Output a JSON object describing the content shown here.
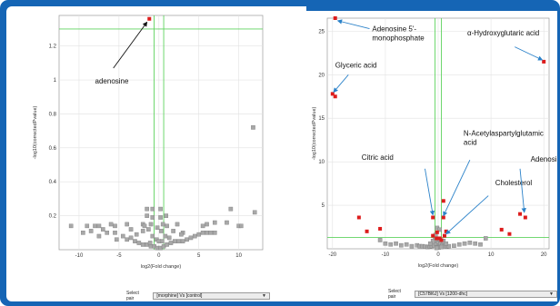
{
  "chart_data": [
    {
      "type": "scatter",
      "xlabel": "log2(Fold change)",
      "ylabel": "-log10(correctedPvalue)",
      "xlim": [
        -12.5,
        13
      ],
      "ylim": [
        0,
        1.38
      ],
      "xticks": [
        -10,
        -5,
        0,
        5,
        10
      ],
      "xtick_labels": [
        "-10",
        "-5",
        "0",
        "5",
        "10"
      ],
      "yticks": [
        0.2,
        0.4,
        0.6,
        0.8,
        1.0,
        1.2
      ],
      "ytick_labels": [
        "0.2",
        "0.4",
        "0.6",
        "0.8",
        "1",
        "1.2"
      ],
      "grid": true,
      "thresholds": {
        "x": [
          -0.6,
          0.6
        ],
        "y": 1.3
      },
      "series": [
        {
          "color": "#dd1c1c",
          "points": [
            [
              -1.2,
              1.36
            ]
          ]
        },
        {
          "color": "#a8a8a8",
          "points": [
            [
              -11,
              0.14
            ],
            [
              -9,
              0.14
            ],
            [
              -8,
              0.14
            ],
            [
              -7.5,
              0.14
            ],
            [
              -6,
              0.15
            ],
            [
              -5.5,
              0.14
            ],
            [
              -7.5,
              0.08
            ],
            [
              -6.5,
              0.1
            ],
            [
              -5.5,
              0.1
            ],
            [
              -5.3,
              0.06
            ],
            [
              -4.5,
              0.08
            ],
            [
              -4,
              0.06
            ],
            [
              -3.5,
              0.07
            ],
            [
              -3,
              0.05
            ],
            [
              -2.5,
              0.04
            ],
            [
              -2,
              0.03
            ],
            [
              -1.5,
              0.03
            ],
            [
              -1,
              0.02
            ],
            [
              -0.6,
              0.02
            ],
            [
              -0.2,
              0.01
            ],
            [
              0.2,
              0.01
            ],
            [
              0.6,
              0.02
            ],
            [
              1.0,
              0.03
            ],
            [
              1.5,
              0.04
            ],
            [
              2.0,
              0.05
            ],
            [
              2.5,
              0.05
            ],
            [
              3.0,
              0.05
            ],
            [
              3.5,
              0.06
            ],
            [
              4.0,
              0.07
            ],
            [
              4.5,
              0.08
            ],
            [
              5.0,
              0.09
            ],
            [
              5.5,
              0.1
            ],
            [
              6.0,
              0.1
            ],
            [
              6.5,
              0.1
            ],
            [
              7.0,
              0.1
            ],
            [
              -2,
              0.15
            ],
            [
              -1.8,
              0.14
            ],
            [
              -1.0,
              0.15
            ],
            [
              0.5,
              0.15
            ],
            [
              1.0,
              0.14
            ],
            [
              -1.5,
              0.2
            ],
            [
              -0.8,
              0.19
            ],
            [
              0.2,
              0.19
            ],
            [
              -1.3,
              0.12
            ],
            [
              0.3,
              0.11
            ],
            [
              -0.8,
              0.08
            ],
            [
              0.8,
              0.08
            ],
            [
              -0.3,
              0.06
            ],
            [
              0.4,
              0.05
            ],
            [
              -2.0,
              0.11
            ],
            [
              1.8,
              0.11
            ],
            [
              -1.5,
              0.24
            ],
            [
              -0.8,
              0.24
            ],
            [
              0.2,
              0.24
            ],
            [
              9.0,
              0.24
            ],
            [
              12.0,
              0.22
            ],
            [
              11.8,
              0.72
            ],
            [
              8.5,
              0.16
            ],
            [
              7.0,
              0.16
            ],
            [
              6.0,
              0.15
            ],
            [
              5.5,
              0.14
            ],
            [
              10.0,
              0.14
            ],
            [
              10.3,
              0.14
            ],
            [
              2.3,
              0.15
            ],
            [
              3.0,
              0.1
            ],
            [
              -3.5,
              0.12
            ],
            [
              -4.0,
              0.15
            ],
            [
              -9.5,
              0.1
            ],
            [
              -8.5,
              0.11
            ],
            [
              -7,
              0.12
            ],
            [
              -2.8,
              0.09
            ],
            [
              2.8,
              0.09
            ],
            [
              -0.2,
              0.13
            ],
            [
              0.9,
              0.2
            ],
            [
              1.3,
              0.07
            ],
            [
              -1.1,
              0.04
            ],
            [
              0.0,
              0.05
            ]
          ]
        }
      ],
      "annotations": [
        {
          "text": "adenosine",
          "label_at": [
            -8,
            0.98
          ],
          "arrow_from": [
            -5.7,
            1.07
          ],
          "arrow_to": [
            -1.5,
            1.34
          ]
        }
      ],
      "select": {
        "label": "Select pair",
        "value": "[morphine] Vs [control]"
      }
    },
    {
      "type": "scatter",
      "xlabel": "log2(Fold change)",
      "ylabel": "-log10(correctedPvalue)",
      "xlim": [
        -21,
        21
      ],
      "ylim": [
        0,
        26.5
      ],
      "xticks": [
        -20,
        -10,
        0,
        10,
        20
      ],
      "xtick_labels": [
        "-20",
        "-10",
        "0",
        "10",
        "20"
      ],
      "yticks": [
        5,
        10,
        15,
        20,
        25
      ],
      "ytick_labels": [
        "5",
        "10",
        "15",
        "20",
        "25"
      ],
      "grid": true,
      "thresholds": {
        "x": [
          -0.6,
          0.6
        ],
        "y": 1.3
      },
      "series": [
        {
          "color": "#dd1c1c",
          "points": [
            [
              -19.5,
              26.5
            ],
            [
              -20,
              17.8
            ],
            [
              -19.5,
              17.5
            ],
            [
              20,
              21.5
            ],
            [
              -15,
              3.6
            ],
            [
              -13.5,
              2.0
            ],
            [
              -11,
              2.3
            ],
            [
              -1,
              3.6
            ],
            [
              1,
              5.5
            ],
            [
              1,
              3.6
            ],
            [
              -0.3,
              1.2
            ],
            [
              0.3,
              1.2
            ],
            [
              -1.0,
              1.5
            ],
            [
              1.2,
              1.5
            ],
            [
              1.5,
              2.0
            ],
            [
              12,
              2.2
            ],
            [
              13.5,
              1.7
            ],
            [
              15.5,
              4.0
            ],
            [
              16.5,
              3.6
            ],
            [
              -0.2,
              1.9
            ],
            [
              0.6,
              1.0
            ]
          ]
        },
        {
          "color": "#a8a8a8",
          "points": [
            [
              -11,
              1.0
            ],
            [
              -10,
              0.6
            ],
            [
              -9,
              0.5
            ],
            [
              -8,
              0.6
            ],
            [
              -7,
              0.4
            ],
            [
              -6,
              0.5
            ],
            [
              -5,
              0.3
            ],
            [
              -4,
              0.4
            ],
            [
              -3.5,
              0.3
            ],
            [
              -3,
              0.3
            ],
            [
              -2.5,
              0.25
            ],
            [
              -2,
              0.2
            ],
            [
              -1.6,
              0.25
            ],
            [
              -1.2,
              0.3
            ],
            [
              -0.8,
              0.4
            ],
            [
              -0.4,
              0.6
            ],
            [
              0,
              0.8
            ],
            [
              0.4,
              0.6
            ],
            [
              0.8,
              0.4
            ],
            [
              1.2,
              0.3
            ],
            [
              1.6,
              0.25
            ],
            [
              2,
              0.3
            ],
            [
              3,
              0.35
            ],
            [
              4,
              0.5
            ],
            [
              5,
              0.6
            ],
            [
              6,
              0.7
            ],
            [
              7,
              0.6
            ],
            [
              8,
              0.5
            ],
            [
              9,
              1.2
            ],
            [
              -0.6,
              1.0
            ],
            [
              0.2,
              1.1
            ],
            [
              -0.2,
              2.4
            ],
            [
              0.3,
              2.2
            ],
            [
              -0.5,
              1.6
            ],
            [
              -1.0,
              0.9
            ],
            [
              1.0,
              0.9
            ],
            [
              -1.5,
              0.6
            ],
            [
              1.5,
              0.6
            ],
            [
              -0.1,
              0.2
            ],
            [
              0.1,
              0.15
            ],
            [
              -0.3,
              0.1
            ],
            [
              0.6,
              0.2
            ]
          ]
        }
      ],
      "annotations": [
        {
          "text": "Adenosine 5'-",
          "text2": "monophosphate",
          "label_at": [
            -12.5,
            25
          ],
          "arrow_from": [
            -13.0,
            25.3
          ],
          "arrow_to": [
            -19.0,
            26.2
          ]
        },
        {
          "text": "Glyceric acid",
          "label_at": [
            -19.5,
            20.8
          ],
          "arrow_from": [
            -17.0,
            20.0
          ],
          "arrow_to": [
            -19.8,
            18.0
          ]
        },
        {
          "text": "α-Hydroxyglutaric acid",
          "label_at": [
            5.5,
            24.5
          ],
          "arrow_from": [
            14.5,
            23.2
          ],
          "arrow_to": [
            19.7,
            21.7
          ]
        },
        {
          "text": "N-Acetylaspartylglutamic",
          "text2": "acid",
          "label_at": [
            4.8,
            13.0
          ],
          "arrow_from": [
            6.0,
            10.2
          ],
          "arrow_to": [
            1.0,
            3.8
          ]
        },
        {
          "text": "Citric acid",
          "label_at": [
            -14.5,
            10.2
          ],
          "arrow_from": [
            -2.5,
            9.2
          ],
          "arrow_to": [
            -1.0,
            3.9
          ]
        },
        {
          "text": "Cholesterol",
          "label_at": [
            10.8,
            7.3
          ],
          "arrow_from": [
            9.5,
            6.1
          ],
          "arrow_to": [
            1.5,
            1.7
          ]
        },
        {
          "text": "Adenosine",
          "label_at": [
            24,
            10.0
          ],
          "arrow_from": [
            15.5,
            9.2
          ],
          "arrow_to": [
            16.3,
            4.2
          ]
        }
      ],
      "select": {
        "label": "Select pair",
        "value": "[C57Bl6J] Vs [1200-dhc]"
      }
    }
  ]
}
